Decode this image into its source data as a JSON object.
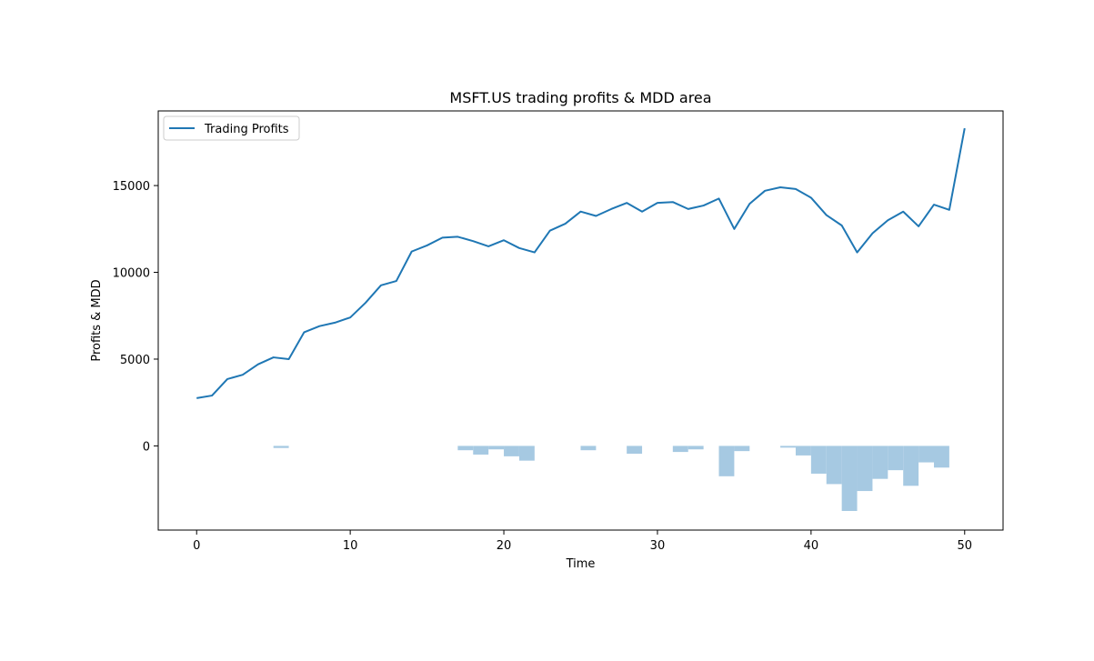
{
  "chart_data": {
    "type": "line",
    "title": "MSFT.US trading profits & MDD area",
    "xlabel": "Time",
    "ylabel": "Profits & MDD",
    "xlim": [
      -2.5,
      52.5
    ],
    "ylim": [
      -4850,
      19300
    ],
    "xticks": [
      0,
      10,
      20,
      30,
      40,
      50
    ],
    "yticks": [
      0,
      5000,
      10000,
      15000
    ],
    "grid": false,
    "legend": {
      "position": "top-left",
      "entries": [
        "Trading Profits"
      ]
    },
    "line_color": "#1f77b4",
    "area_color": "#a6c9e2",
    "series": [
      {
        "name": "Trading Profits",
        "x": [
          0,
          1,
          2,
          3,
          4,
          5,
          6,
          7,
          8,
          9,
          10,
          11,
          12,
          13,
          14,
          15,
          16,
          17,
          18,
          19,
          20,
          21,
          22,
          23,
          24,
          25,
          26,
          27,
          28,
          29,
          30,
          31,
          32,
          33,
          34,
          35,
          36,
          37,
          38,
          39,
          40,
          41,
          42,
          43,
          44,
          45,
          46,
          47,
          48,
          49,
          50
        ],
        "y": [
          2750,
          2900,
          3850,
          4100,
          4700,
          5100,
          5000,
          6550,
          6900,
          7100,
          7400,
          8250,
          9250,
          9500,
          11200,
          11550,
          12000,
          12050,
          11800,
          11500,
          11850,
          11400,
          11150,
          12400,
          12800,
          13500,
          13250,
          13650,
          14000,
          13500,
          14000,
          14050,
          13650,
          13850,
          14250,
          12500,
          13950,
          14700,
          14900,
          14800,
          14300,
          13300,
          12700,
          11150,
          12250,
          13000,
          13500,
          12650,
          13900,
          13600,
          18300
        ]
      },
      {
        "name": "MDD",
        "type": "step-area",
        "x": [
          0,
          1,
          2,
          3,
          4,
          5,
          6,
          7,
          8,
          9,
          10,
          11,
          12,
          13,
          14,
          15,
          16,
          17,
          18,
          19,
          20,
          21,
          22,
          23,
          24,
          25,
          26,
          27,
          28,
          29,
          30,
          31,
          32,
          33,
          34,
          35,
          36,
          37,
          38,
          39,
          40,
          41,
          42,
          43,
          44,
          45,
          46,
          47,
          48,
          49
        ],
        "y": [
          0,
          0,
          0,
          0,
          0,
          -120,
          0,
          0,
          0,
          0,
          0,
          0,
          0,
          0,
          0,
          0,
          0,
          -250,
          -500,
          -200,
          -600,
          -850,
          0,
          0,
          0,
          -250,
          0,
          0,
          -450,
          0,
          0,
          -350,
          -200,
          0,
          -1750,
          -300,
          0,
          0,
          -100,
          -550,
          -1600,
          -2200,
          -3750,
          -2600,
          -1900,
          -1400,
          -2300,
          -950,
          -1250,
          0
        ]
      }
    ]
  }
}
